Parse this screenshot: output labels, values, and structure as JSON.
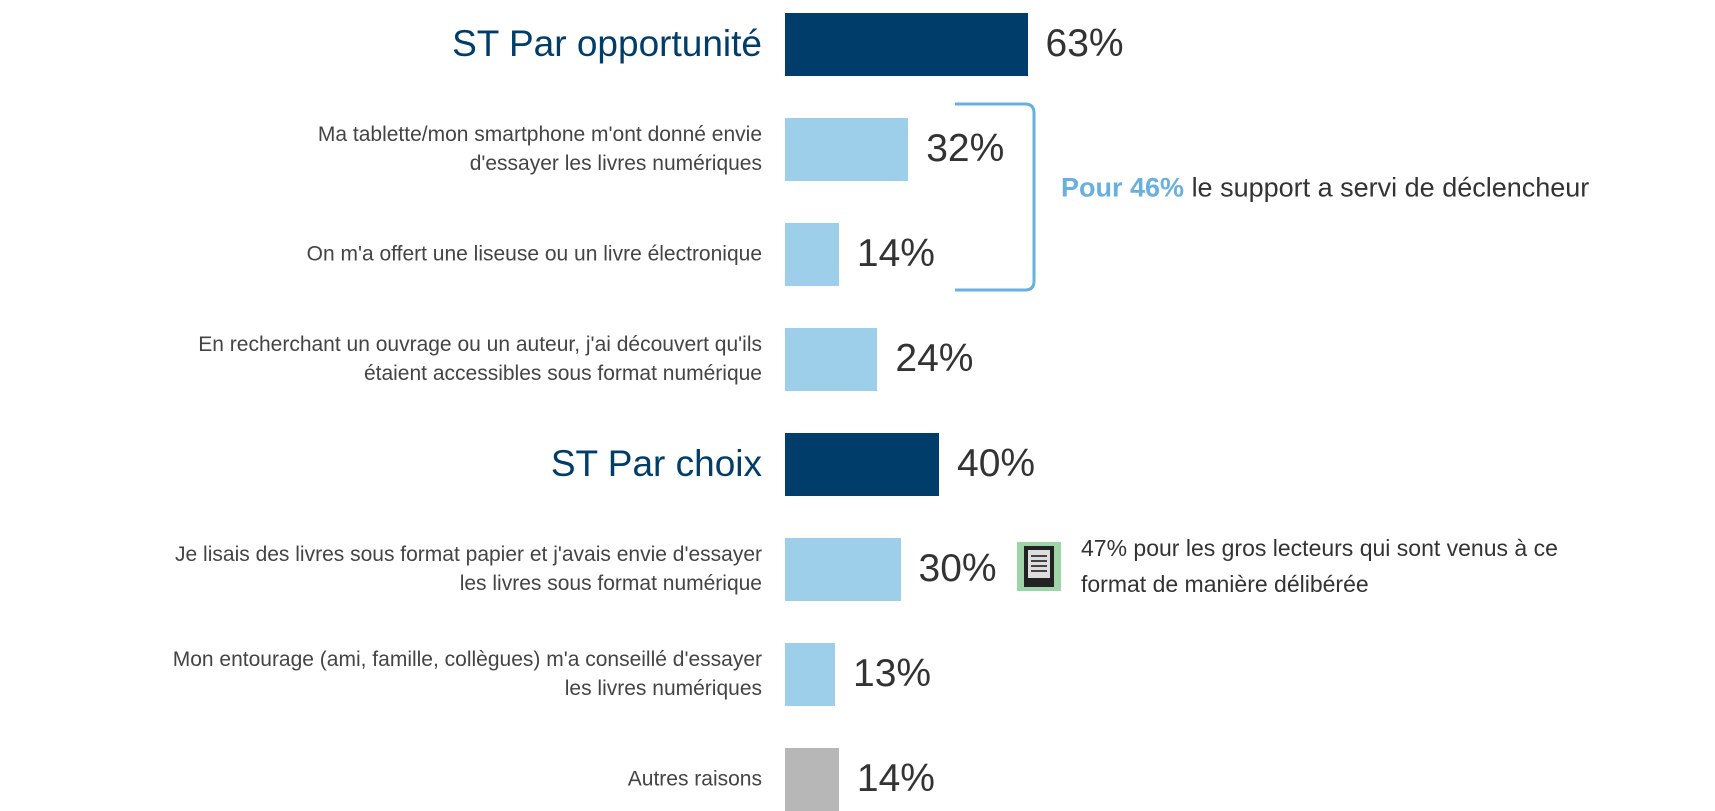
{
  "chart_data": {
    "type": "bar",
    "orientation": "horizontal",
    "categories": [
      "ST Par opportunité",
      "Ma tablette/mon smartphone m'ont donné envie\nd'essayer les livres numériques",
      "On m'a offert une liseuse ou un livre électronique",
      "En recherchant un ouvrage ou un auteur, j'ai découvert qu'ils\nétaient accessibles sous format numérique",
      "ST Par choix",
      "Je lisais des livres sous format papier et j'avais envie d'essayer\nles livres sous format numérique",
      "Mon entourage (ami, famille, collègues) m'a conseillé d'essayer\nles livres numériques",
      "Autres raisons"
    ],
    "values": [
      63,
      32,
      14,
      24,
      40,
      30,
      13,
      14
    ],
    "value_labels": [
      "63%",
      "32%",
      "14%",
      "24%",
      "40%",
      "30%",
      "13%",
      "14%"
    ],
    "colors": [
      "#003d6b",
      "#9dcfeb",
      "#9dcfeb",
      "#9dcfeb",
      "#003d6b",
      "#9dcfeb",
      "#9dcfeb",
      "#b7b7b7"
    ],
    "subtotal_color": "#003d6b",
    "bracket_annotation": {
      "highlight": "Pour 46%",
      "text": "le support a servi de déclencheur",
      "color": "#6ab0de"
    },
    "note": "47% pour les gros lecteurs qui sont venus à ce\nformat de manière délibérée"
  }
}
